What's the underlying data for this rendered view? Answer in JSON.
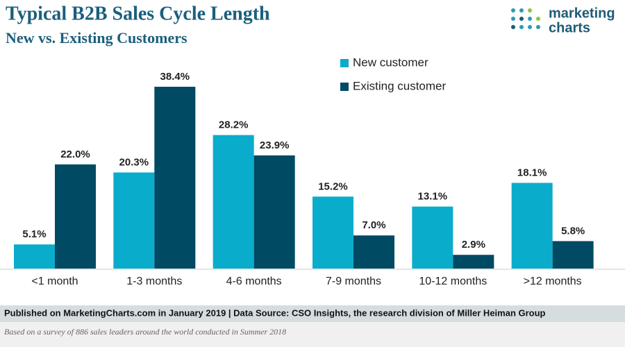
{
  "chart_data": {
    "type": "bar",
    "title": "Typical B2B Sales Cycle Length",
    "subtitle": "New vs. Existing Customers",
    "categories": [
      "<1 month",
      "1-3 months",
      "4-6 months",
      "7-9 months",
      "10-12 months",
      ">12 months"
    ],
    "series": [
      {
        "name": "New customer",
        "color": "#0aaccc",
        "values": [
          5.1,
          20.3,
          28.2,
          15.2,
          13.1,
          18.1
        ],
        "value_labels": [
          "5.1%",
          "20.3%",
          "28.2%",
          "15.2%",
          "13.1%",
          "18.1%"
        ]
      },
      {
        "name": "Existing customer",
        "color": "#004a63",
        "values": [
          22.0,
          38.4,
          23.9,
          7.0,
          2.9,
          5.8
        ],
        "value_labels": [
          "22.0%",
          "38.4%",
          "23.9%",
          "7.0%",
          "2.9%",
          "5.8%"
        ]
      }
    ]
  },
  "logo": [
    "marketing",
    "charts"
  ],
  "source": "Published on MarketingCharts.com in January 2019 | Data Source: CSO Insights, the research division of Miller Heiman Group",
  "note": "Based on a survey of 886 sales leaders around the world conducted in Summer 2018"
}
